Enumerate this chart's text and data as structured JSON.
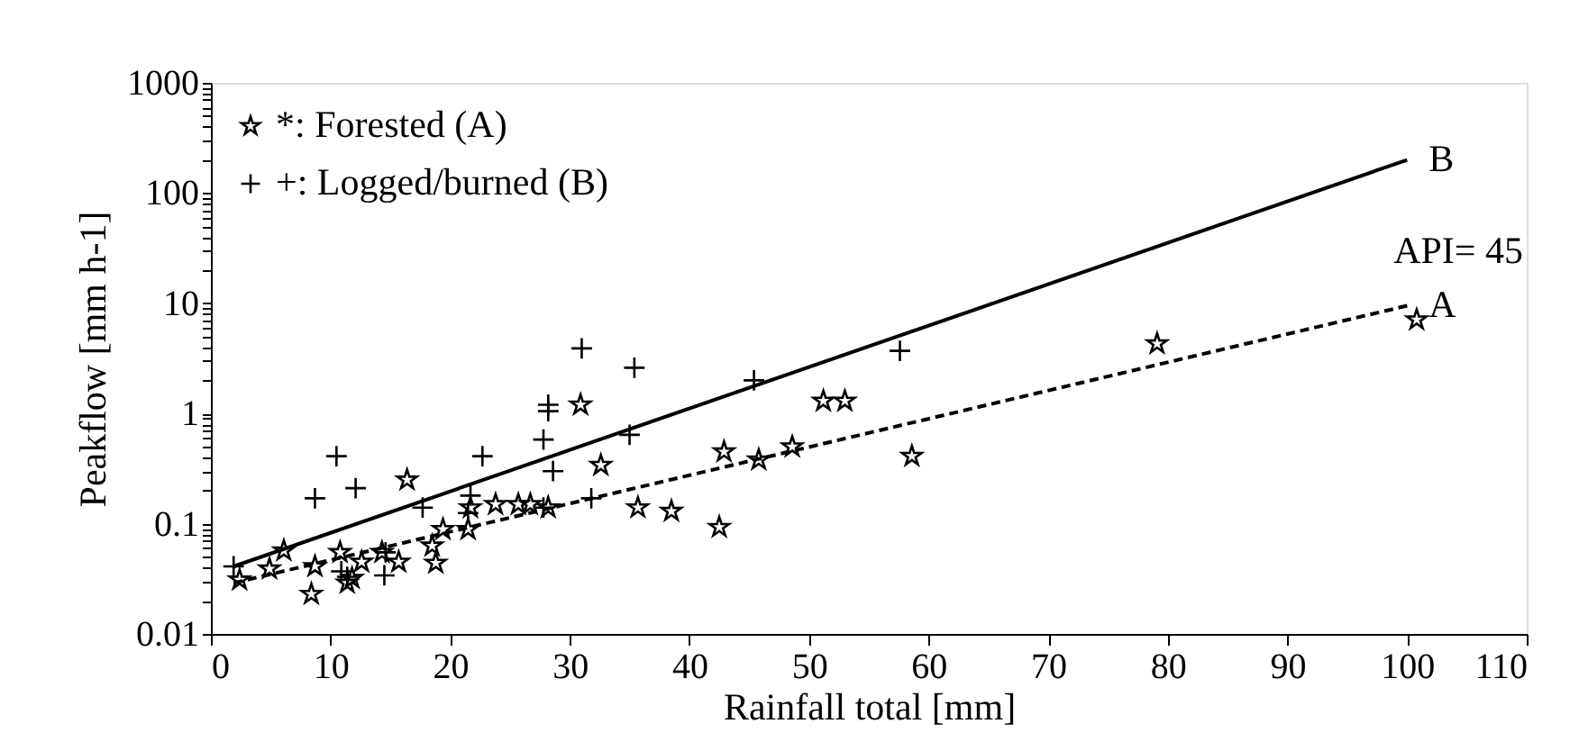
{
  "chart_data": {
    "type": "scatter",
    "xlabel": "Rainfall total [mm]",
    "ylabel": "Peakflow [mm h-1]",
    "log": "y",
    "grid": false,
    "legend": "top left",
    "xlim": [
      0,
      110
    ],
    "xticks": [
      0,
      10,
      20,
      30,
      40,
      50,
      60,
      70,
      80,
      90,
      100,
      110
    ],
    "ylim": [
      0.01,
      1000
    ],
    "yticks": [
      0.01,
      {
        "value": 0.02,
        "label": null
      },
      {
        "value": 0.03,
        "label": null
      },
      {
        "value": 0.04,
        "label": null
      },
      {
        "value": 0.05,
        "label": null
      },
      {
        "value": 0.06,
        "label": null
      },
      {
        "value": 0.07,
        "label": null
      },
      {
        "value": 0.08,
        "label": null
      },
      {
        "value": 0.09,
        "label": null
      },
      0.1,
      {
        "value": 0.2,
        "label": null
      },
      {
        "value": 0.3,
        "label": null
      },
      {
        "value": 0.4,
        "label": null
      },
      {
        "value": 0.5,
        "label": null
      },
      {
        "value": 0.6,
        "label": null
      },
      {
        "value": 0.7,
        "label": null
      },
      {
        "value": 0.8,
        "label": null
      },
      {
        "value": 0.9,
        "label": null
      },
      1,
      {
        "value": 2,
        "label": null
      },
      {
        "value": 3,
        "label": null
      },
      {
        "value": 4,
        "label": null
      },
      {
        "value": 5,
        "label": null
      },
      {
        "value": 6,
        "label": null
      },
      {
        "value": 7,
        "label": null
      },
      {
        "value": 8,
        "label": null
      },
      {
        "value": 9,
        "label": null
      },
      10,
      {
        "value": 20,
        "label": null
      },
      {
        "value": 30,
        "label": null
      },
      {
        "value": 40,
        "label": null
      },
      {
        "value": 50,
        "label": null
      },
      {
        "value": 60,
        "label": null
      },
      {
        "value": 70,
        "label": null
      },
      {
        "value": 80,
        "label": null
      },
      {
        "value": 90,
        "label": null
      },
      100,
      {
        "value": 200,
        "label": null
      },
      {
        "value": 300,
        "label": null
      },
      {
        "value": 400,
        "label": null
      },
      {
        "value": 500,
        "label": null
      },
      {
        "value": 600,
        "label": null
      },
      {
        "value": 700,
        "label": null
      },
      {
        "value": 800,
        "label": null
      },
      {
        "value": 900,
        "label": null
      },
      1000
    ],
    "series": [
      {
        "name": "*: Forested (A)",
        "marker": "star",
        "color": "#000000",
        "x": [
          2.4,
          4.9,
          6.1,
          8.4,
          8.7,
          10.8,
          11.4,
          11.8,
          12.6,
          14.3,
          15.7,
          16.4,
          18.5,
          18.8,
          19.4,
          21.5,
          21.7,
          23.8,
          25.7,
          26.7,
          28.2,
          30.9,
          32.6,
          35.7,
          38.5,
          42.5,
          42.9,
          45.8,
          48.6,
          51.2,
          53.0,
          58.6,
          79.1,
          100.8
        ],
        "values": [
          0.031,
          0.039,
          0.057,
          0.023,
          0.041,
          0.055,
          0.029,
          0.032,
          0.045,
          0.055,
          0.045,
          0.25,
          0.063,
          0.044,
          0.089,
          0.089,
          0.14,
          0.15,
          0.15,
          0.15,
          0.14,
          1.2,
          0.34,
          0.14,
          0.13,
          0.093,
          0.45,
          0.38,
          0.5,
          1.3,
          1.3,
          0.41,
          4.3,
          7.1
        ]
      },
      {
        "name": "+: Logged/burned (B)",
        "marker": "cross",
        "color": "#000000",
        "x": [
          1.9,
          8.7,
          10.5,
          10.9,
          11.4,
          12.1,
          14.5,
          14.6,
          17.7,
          21.5,
          21.7,
          22.7,
          27.8,
          27.8,
          28.2,
          28.2,
          28.6,
          31.0,
          31.8,
          35.0,
          35.4,
          45.4,
          57.6
        ],
        "values": [
          0.041,
          0.17,
          0.41,
          0.037,
          0.033,
          0.21,
          0.034,
          0.055,
          0.14,
          0.125,
          0.18,
          0.41,
          0.14,
          0.58,
          1.05,
          1.2,
          0.3,
          3.9,
          0.17,
          0.64,
          2.6,
          2.0,
          3.7
        ]
      },
      {
        "type": "line",
        "line_style": "solid",
        "color": "#000000",
        "x": [
          1.9,
          100
        ],
        "values": [
          0.041,
          200
        ]
      },
      {
        "type": "line",
        "line_style": "dashed",
        "color": "#000000",
        "x": [
          1.9,
          100
        ],
        "values": [
          0.029,
          9.5
        ]
      }
    ],
    "annotations": [
      {
        "text": "B",
        "x": 100,
        "y": 200
      },
      {
        "text": "A",
        "x": 100,
        "y": 9.5
      },
      "API= 45"
    ]
  }
}
